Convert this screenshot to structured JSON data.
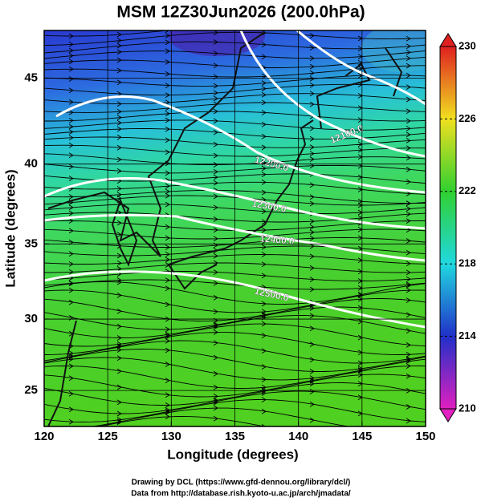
{
  "title": "MSM 12Z30Jun2026 (200.0hPa)",
  "map": {
    "x_label": "Longitude (degrees)",
    "y_label": "Latitude  (degrees)",
    "xlim": [
      120,
      150
    ],
    "ylim": [
      22.4,
      47.6
    ],
    "xticks": [
      120,
      125,
      130,
      135,
      140,
      145,
      150
    ],
    "yticks": [
      25,
      30,
      35,
      40,
      45
    ],
    "contour_labels": [
      "12100.0",
      "12200.0",
      "12300.0",
      "12400.0",
      "12500.0"
    ]
  },
  "colorbar": {
    "range": [
      210,
      230
    ],
    "ticks": [
      210,
      214,
      218,
      222,
      226,
      230
    ],
    "colors": [
      "#e020c0",
      "#2030c8",
      "#20d8e0",
      "#30d030",
      "#f0e020",
      "#e02020"
    ]
  },
  "credits": [
    "Drawing by DCL (https://www.gfd-dennou.org/library/dcl/)",
    "Data from http://database.rish.kyoto-u.ac.jp/arch/jmadata/"
  ]
}
